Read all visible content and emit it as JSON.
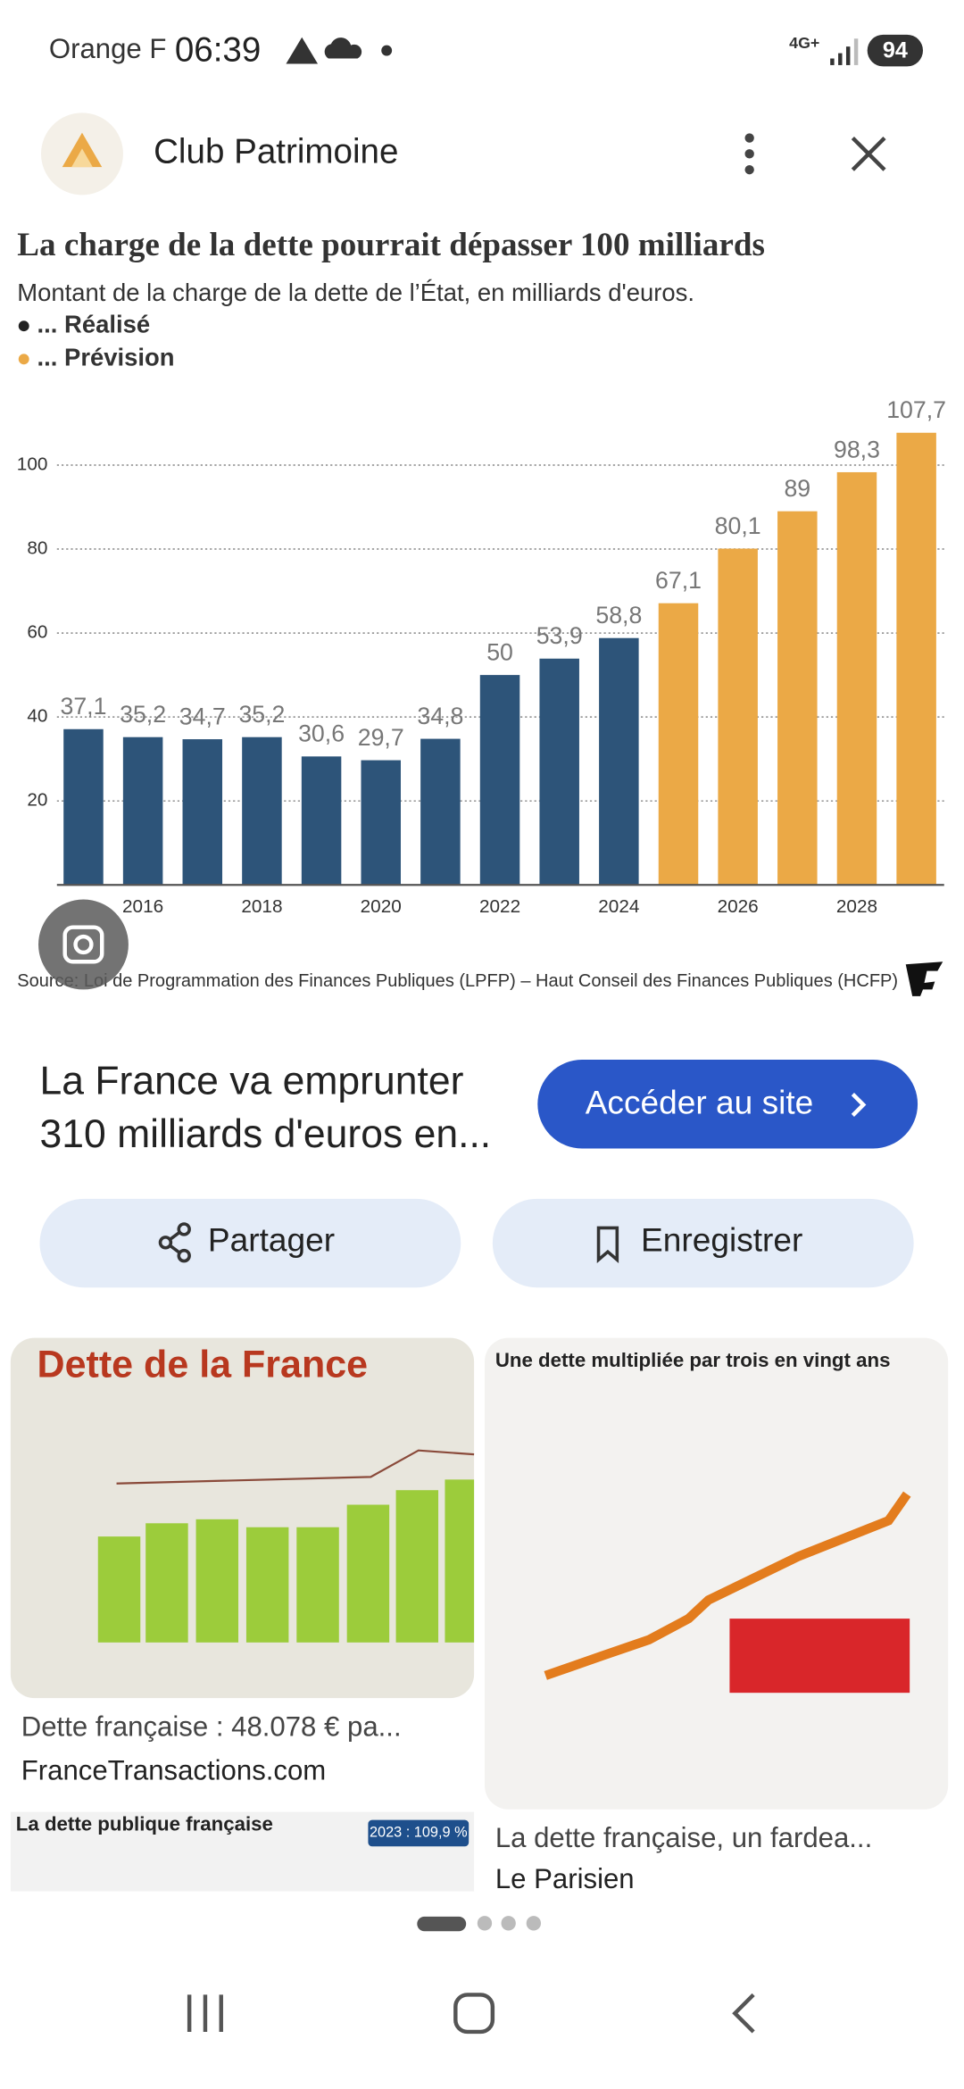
{
  "status_bar": {
    "carrier": "Orange F",
    "time": "06:39",
    "network": "4G+",
    "battery": 94
  },
  "header": {
    "title": "Club Patrimoine"
  },
  "chart_data": {
    "type": "bar",
    "title": "La charge de la dette pourrait dépasser 100 milliards",
    "subtitle": "Montant de la charge de la dette de l’État, en milliards d'euros.",
    "source": "Source: Loi de Programmation des Finances Publiques (LPFP) – Haut Conseil des Finances Publiques (HCFP)",
    "categories": [
      null,
      "2016",
      null,
      "2018",
      null,
      "2020",
      null,
      "2022",
      null,
      "2024",
      null,
      "2026",
      null,
      "2028",
      null
    ],
    "series": [
      {
        "name": "... Réalisé",
        "color": "#2d5479",
        "values": [
          37.1,
          35.2,
          34.7,
          35.2,
          30.6,
          29.7,
          34.8,
          50,
          53.9,
          58.8,
          null,
          null,
          null,
          null,
          null
        ],
        "value_labels": [
          "37,1",
          "35,2",
          "34,7",
          "35,2",
          "30,6",
          "29,7",
          "34,8",
          "50",
          "53,9",
          "58,8",
          null,
          null,
          null,
          null,
          null
        ]
      },
      {
        "name": "... Prévision",
        "color": "#eba946",
        "values": [
          null,
          null,
          null,
          null,
          null,
          null,
          null,
          null,
          null,
          null,
          67.1,
          80.1,
          89,
          98.3,
          107.7
        ],
        "value_labels": [
          null,
          null,
          null,
          null,
          null,
          null,
          null,
          null,
          null,
          null,
          "67,1",
          "80,1",
          "89",
          "98,3",
          "107,7"
        ]
      }
    ],
    "ylim": [
      0,
      110
    ],
    "yticks": [
      20,
      40,
      60,
      80,
      100
    ],
    "grid": true
  },
  "result": {
    "title_lines": [
      "La France va emprunter",
      "310 milliards d'euros en..."
    ],
    "visit_button": "Accéder au site",
    "share_button": "Partager",
    "save_button": "Enregistrer"
  },
  "related": [
    {
      "image_title": "Dette de la France",
      "caption": "Dette française : 48.078 € pa...",
      "source": "FranceTransactions.com"
    },
    {
      "image_title": "Une dette multipliée par trois en vingt ans",
      "caption": "La dette française, un fardea...",
      "source": "Le Parisien"
    },
    {
      "image_title": "La dette publique française",
      "image_badge": "2023 : 109,9 %"
    }
  ]
}
